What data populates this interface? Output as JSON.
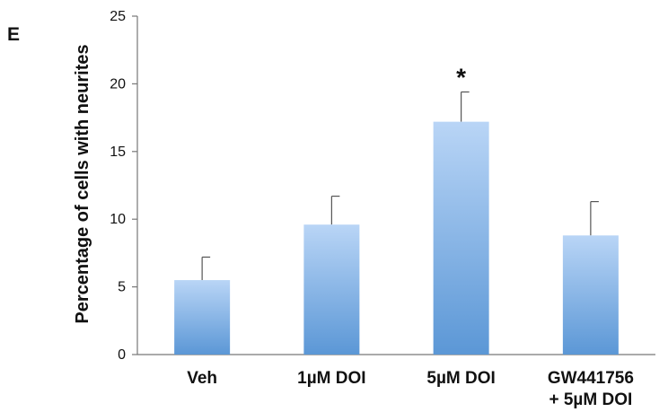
{
  "panel_label": "E",
  "chart_data": {
    "type": "bar",
    "categories": [
      [
        "Veh"
      ],
      [
        "1µM DOI"
      ],
      [
        "5µM DOI"
      ],
      [
        "GW441756",
        "+ 5µM DOI"
      ]
    ],
    "values": [
      5.5,
      9.6,
      17.2,
      8.8
    ],
    "errors": [
      1.7,
      2.1,
      2.2,
      2.5
    ],
    "significance": [
      "",
      "",
      "*",
      ""
    ],
    "title": "",
    "xlabel": "",
    "ylabel": "Percentage of cells with neurites",
    "ylim": [
      0,
      25
    ],
    "yticks": [
      0,
      5,
      10,
      15,
      20,
      25
    ],
    "grid": false,
    "legend": "none",
    "colors": {
      "bar_top": "#b9d5f6",
      "bar_bottom": "#5b97d6",
      "axis": "#777777",
      "error": "#555555"
    }
  }
}
